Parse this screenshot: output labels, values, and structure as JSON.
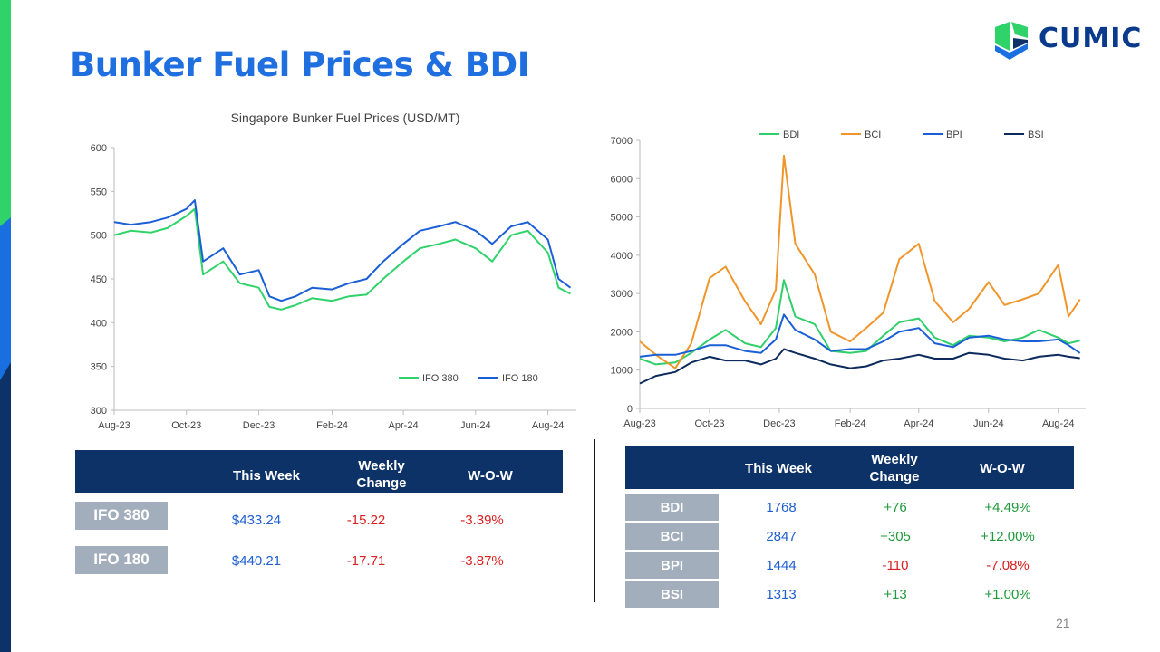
{
  "page": {
    "title": "Bunker Fuel Prices & BDI",
    "page_number": "21",
    "logo_text": "CUMIC"
  },
  "colors": {
    "title": "#1f6fe0",
    "header": "#0d3268",
    "label_bg": "#a3aebc",
    "up": "#1f9a3a",
    "down": "#d92121",
    "neutral": "#1f5fd0"
  },
  "fuel_table": {
    "headers": [
      "This Week",
      "Weekly Change",
      "W-O-W"
    ],
    "rows": [
      {
        "label": "IFO 380",
        "this_week": "$433.24",
        "change": "-15.22",
        "wow": "-3.39%"
      },
      {
        "label": "IFO 180",
        "this_week": "$440.21",
        "change": "-17.71",
        "wow": "-3.87%"
      }
    ]
  },
  "index_table": {
    "headers": [
      "This Week",
      "Weekly Change",
      "W-O-W"
    ],
    "rows": [
      {
        "label": "BDI",
        "this_week": "1768",
        "change": "+76",
        "wow": "+4.49%"
      },
      {
        "label": "BCI",
        "this_week": "2847",
        "change": "+305",
        "wow": "+12.00%"
      },
      {
        "label": "BPI",
        "this_week": "1444",
        "change": "-110",
        "wow": "-7.08%"
      },
      {
        "label": "BSI",
        "this_week": "1313",
        "change": "+13",
        "wow": "+1.00%"
      }
    ]
  },
  "chart_data": [
    {
      "type": "line",
      "title": "Singapore Bunker Fuel Prices (USD/MT)",
      "xlabel": "",
      "ylabel": "",
      "x_ticks": [
        "Aug-23",
        "Oct-23",
        "Dec-23",
        "Feb-24",
        "Apr-24",
        "Jun-24",
        "Aug-24"
      ],
      "ylim": [
        300,
        600
      ],
      "y_ticks": [
        300,
        350,
        400,
        450,
        500,
        550,
        600
      ],
      "grid": false,
      "legend": "bottom-right",
      "x": [
        "2023-08-01",
        "2023-08-15",
        "2023-09-01",
        "2023-09-15",
        "2023-10-01",
        "2023-10-08",
        "2023-10-15",
        "2023-11-01",
        "2023-11-15",
        "2023-12-01",
        "2023-12-10",
        "2023-12-20",
        "2024-01-01",
        "2024-01-15",
        "2024-02-01",
        "2024-02-15",
        "2024-03-01",
        "2024-03-15",
        "2024-04-01",
        "2024-04-15",
        "2024-05-01",
        "2024-05-15",
        "2024-06-01",
        "2024-06-15",
        "2024-07-01",
        "2024-07-15",
        "2024-08-01",
        "2024-08-10",
        "2024-08-20"
      ],
      "series": [
        {
          "name": "IFO 380",
          "color": "#2fd36a",
          "values": [
            500,
            505,
            503,
            508,
            522,
            530,
            455,
            470,
            445,
            440,
            418,
            415,
            420,
            428,
            425,
            430,
            432,
            450,
            470,
            485,
            490,
            495,
            485,
            470,
            500,
            505,
            480,
            440,
            433
          ]
        },
        {
          "name": "IFO 180",
          "color": "#1a5fd6",
          "values": [
            515,
            512,
            515,
            520,
            530,
            540,
            470,
            485,
            455,
            460,
            430,
            425,
            430,
            440,
            438,
            445,
            450,
            470,
            490,
            505,
            510,
            515,
            505,
            490,
            510,
            515,
            495,
            450,
            440
          ]
        }
      ]
    },
    {
      "type": "line",
      "title": "",
      "xlabel": "",
      "ylabel": "",
      "x_ticks": [
        "Aug-23",
        "Oct-23",
        "Dec-23",
        "Feb-24",
        "Apr-24",
        "Jun-24",
        "Aug-24"
      ],
      "ylim": [
        0,
        7000
      ],
      "y_ticks": [
        0,
        1000,
        2000,
        3000,
        4000,
        5000,
        6000,
        7000
      ],
      "grid": false,
      "legend": "top",
      "x": [
        "2023-08-01",
        "2023-08-15",
        "2023-09-01",
        "2023-09-15",
        "2023-10-01",
        "2023-10-15",
        "2023-11-01",
        "2023-11-15",
        "2023-11-28",
        "2023-12-05",
        "2023-12-15",
        "2024-01-01",
        "2024-01-15",
        "2024-02-01",
        "2024-02-15",
        "2024-03-01",
        "2024-03-15",
        "2024-04-01",
        "2024-04-15",
        "2024-05-01",
        "2024-05-15",
        "2024-06-01",
        "2024-06-15",
        "2024-07-01",
        "2024-07-15",
        "2024-08-01",
        "2024-08-10",
        "2024-08-20"
      ],
      "series": [
        {
          "name": "BDI",
          "color": "#2fcf6a",
          "values": [
            1300,
            1150,
            1200,
            1450,
            1800,
            2050,
            1700,
            1600,
            2100,
            3350,
            2400,
            2200,
            1500,
            1450,
            1500,
            1900,
            2250,
            2350,
            1850,
            1650,
            1900,
            1850,
            1750,
            1850,
            2050,
            1850,
            1700,
            1768
          ]
        },
        {
          "name": "BCI",
          "color": "#f0952a",
          "values": [
            1750,
            1400,
            1050,
            1700,
            3400,
            3700,
            2800,
            2200,
            3100,
            6600,
            4300,
            3500,
            2000,
            1750,
            2100,
            2500,
            3900,
            4300,
            2800,
            2250,
            2600,
            3300,
            2700,
            2850,
            3000,
            3750,
            2400,
            2847
          ]
        },
        {
          "name": "BPI",
          "color": "#1a5fd6",
          "values": [
            1350,
            1400,
            1400,
            1500,
            1650,
            1650,
            1500,
            1450,
            1800,
            2450,
            2050,
            1800,
            1500,
            1550,
            1550,
            1750,
            2000,
            2100,
            1700,
            1600,
            1850,
            1900,
            1800,
            1750,
            1750,
            1800,
            1650,
            1444
          ]
        },
        {
          "name": "BSI",
          "color": "#0d2a5c",
          "values": [
            650,
            850,
            950,
            1200,
            1350,
            1250,
            1250,
            1150,
            1300,
            1550,
            1450,
            1300,
            1150,
            1050,
            1100,
            1250,
            1300,
            1400,
            1300,
            1300,
            1450,
            1400,
            1300,
            1250,
            1350,
            1400,
            1350,
            1313
          ]
        }
      ]
    }
  ]
}
